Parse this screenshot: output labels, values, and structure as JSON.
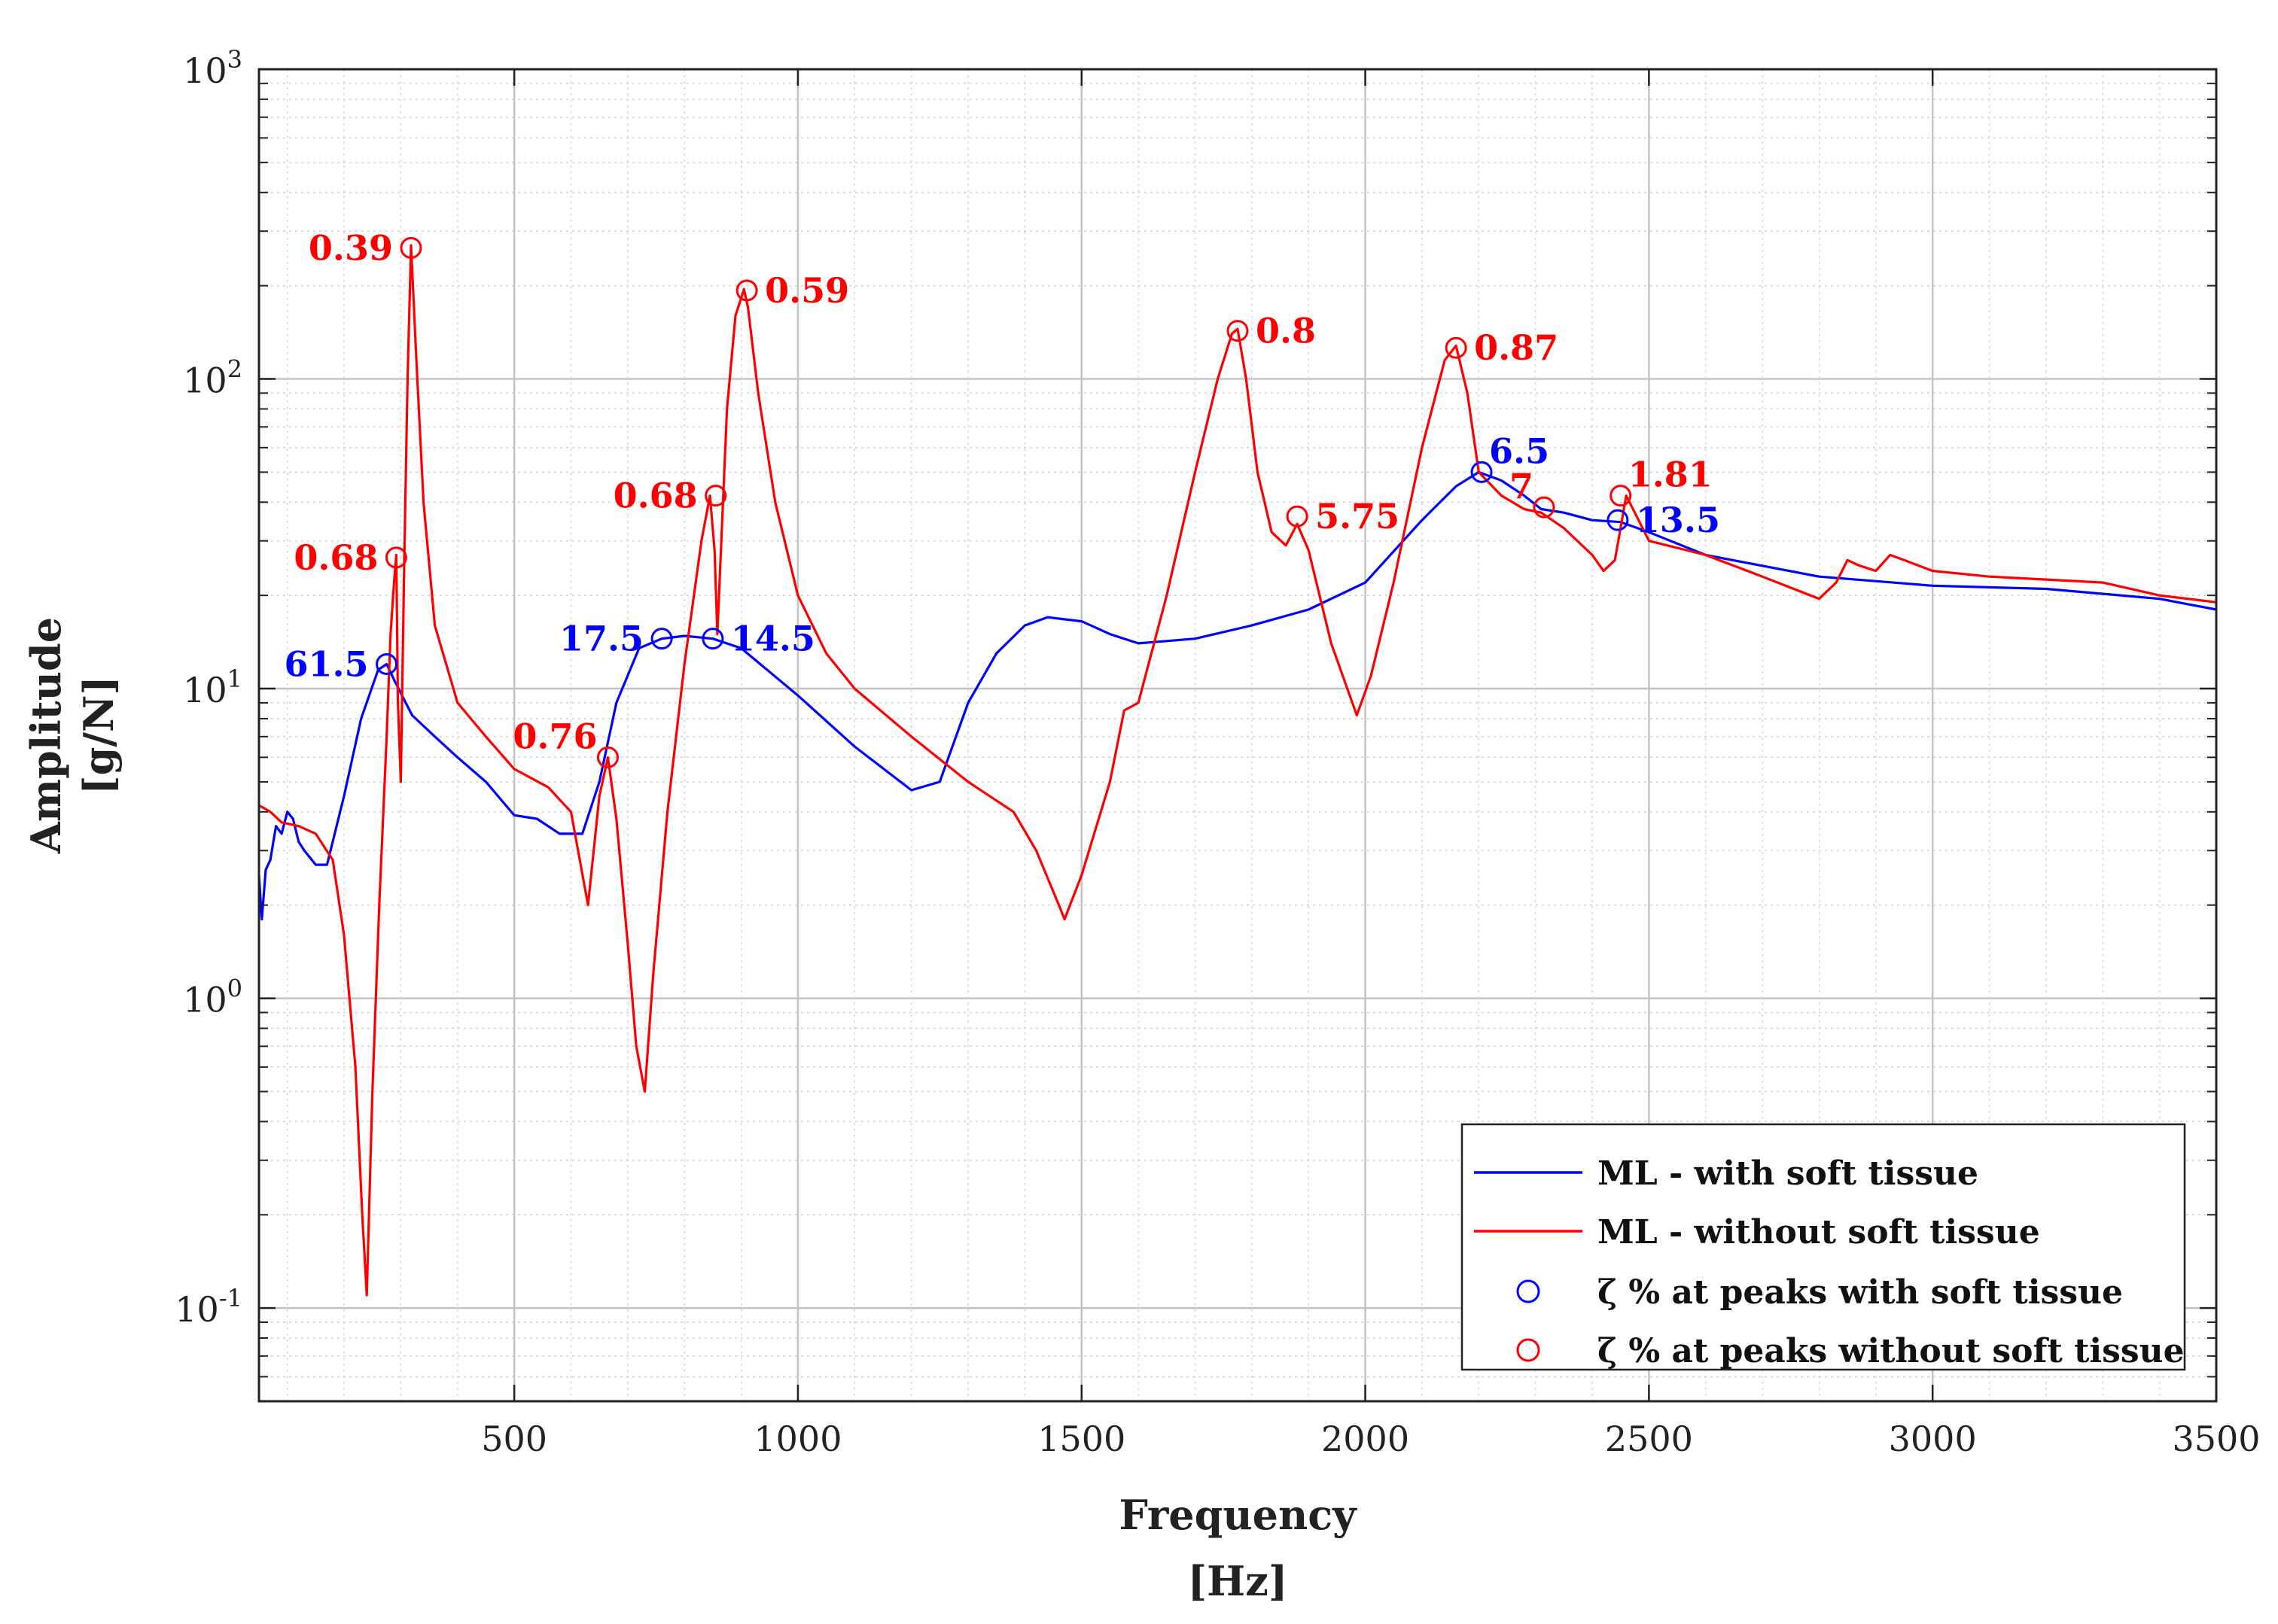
{
  "chart_data": {
    "type": "line",
    "xlabel": "Frequency",
    "xunit": "[Hz]",
    "ylabel": "Amplitude",
    "yunit": "[g/N]",
    "xscale": "linear",
    "yscale": "log",
    "xlim": [
      50,
      3500
    ],
    "ylim": [
      0.05,
      1000
    ],
    "grid": true,
    "minor_grid": true,
    "legend_position": "bottom-right",
    "xticks": [
      500,
      1000,
      1500,
      2000,
      2500,
      3000,
      3500
    ],
    "xtick_labels": [
      "500",
      "1000",
      "1500",
      "2000",
      "2500",
      "3000",
      "3500"
    ],
    "yticks": [
      {
        "value": 0.1,
        "base": "10",
        "exp": "-1"
      },
      {
        "value": 1,
        "base": "10",
        "exp": "0"
      },
      {
        "value": 10,
        "base": "10",
        "exp": "1"
      },
      {
        "value": 100,
        "base": "10",
        "exp": "2"
      },
      {
        "value": 1000,
        "base": "10",
        "exp": "3"
      }
    ],
    "series": [
      {
        "name": "ML - with soft tissue",
        "color": "#0000ff",
        "x": [
          50,
          55,
          62,
          70,
          80,
          90,
          100,
          110,
          120,
          130,
          150,
          170,
          200,
          230,
          260,
          275,
          290,
          320,
          360,
          400,
          450,
          500,
          540,
          580,
          620,
          650,
          680,
          720,
          760,
          800,
          850,
          900,
          1000,
          1100,
          1200,
          1250,
          1300,
          1350,
          1400,
          1440,
          1500,
          1550,
          1600,
          1700,
          1800,
          1900,
          2000,
          2100,
          2160,
          2200,
          2240,
          2280,
          2310,
          2350,
          2400,
          2450,
          2500,
          2600,
          2800,
          3000,
          3200,
          3400,
          3500
        ],
        "values": [
          2.5,
          1.8,
          2.6,
          2.8,
          3.6,
          3.4,
          4.0,
          3.8,
          3.2,
          3.0,
          2.7,
          2.7,
          4.5,
          8.0,
          11.5,
          12.0,
          10.5,
          8.2,
          7.0,
          6.0,
          5.0,
          3.9,
          3.8,
          3.4,
          3.4,
          5.0,
          9.0,
          13.5,
          14.5,
          14.8,
          14.5,
          13.5,
          9.5,
          6.5,
          4.7,
          5.0,
          9.0,
          13.0,
          16.0,
          17.0,
          16.5,
          15.0,
          14.0,
          14.5,
          16.0,
          18.0,
          22.0,
          35.0,
          45.0,
          50.0,
          47.0,
          42.0,
          38.0,
          37.0,
          35.0,
          34.5,
          32.0,
          27.0,
          23.0,
          21.5,
          21.0,
          19.5,
          18.0
        ]
      },
      {
        "name": "ML - without soft tissue",
        "color": "#ff0000",
        "x": [
          50,
          70,
          90,
          120,
          150,
          180,
          200,
          220,
          232,
          240,
          250,
          262,
          275,
          282,
          288,
          292,
          295,
          300,
          306,
          312,
          318,
          328,
          340,
          360,
          400,
          450,
          500,
          560,
          600,
          630,
          650,
          665,
          680,
          700,
          715,
          730,
          745,
          770,
          800,
          830,
          845,
          853,
          858,
          865,
          875,
          890,
          905,
          912,
          930,
          960,
          1000,
          1050,
          1100,
          1200,
          1300,
          1380,
          1420,
          1460,
          1470,
          1500,
          1550,
          1575,
          1600,
          1650,
          1700,
          1740,
          1765,
          1775,
          1790,
          1810,
          1835,
          1860,
          1880,
          1900,
          1940,
          1985,
          2010,
          2050,
          2100,
          2140,
          2160,
          2180,
          2200,
          2240,
          2280,
          2310,
          2350,
          2400,
          2420,
          2440,
          2460,
          2500,
          2600,
          2700,
          2800,
          2830,
          2850,
          2870,
          2900,
          2925,
          2950,
          3000,
          3100,
          3200,
          3300,
          3400,
          3500
        ],
        "values": [
          4.2,
          4.0,
          3.7,
          3.6,
          3.4,
          2.8,
          1.6,
          0.6,
          0.2,
          0.11,
          0.5,
          2.0,
          7.0,
          15.0,
          22.0,
          27.0,
          9.0,
          5.0,
          25.0,
          100.0,
          270.0,
          110.0,
          40.0,
          16.0,
          9.0,
          7.0,
          5.5,
          4.8,
          4.0,
          2.0,
          4.5,
          6.0,
          3.8,
          1.5,
          0.7,
          0.5,
          1.2,
          4.0,
          12.0,
          30.0,
          42.0,
          28.0,
          15.0,
          30.0,
          80.0,
          160.0,
          195.0,
          170.0,
          90.0,
          40.0,
          20.0,
          13.0,
          10.0,
          7.0,
          5.0,
          4.0,
          3.0,
          2.0,
          1.8,
          2.5,
          5.0,
          8.5,
          9.0,
          20.0,
          50.0,
          100.0,
          140.0,
          145.0,
          100.0,
          50.0,
          32.0,
          29.0,
          34.0,
          28.0,
          14.0,
          8.2,
          11.0,
          22.0,
          60.0,
          115.0,
          128.0,
          90.0,
          50.0,
          42.0,
          38.0,
          37.0,
          33.0,
          27.0,
          24.0,
          26.0,
          42.0,
          30.0,
          27.0,
          23.0,
          19.5,
          22.0,
          26.0,
          25.0,
          24.0,
          27.0,
          26.0,
          24.0,
          23.0,
          22.5,
          22.0,
          20.0,
          19.0
        ]
      }
    ],
    "peak_markers": [
      {
        "series": "with",
        "x": 275,
        "y": 12.0,
        "label": "61.5",
        "side": "left",
        "color": "#0000ff"
      },
      {
        "series": "with",
        "x": 760,
        "y": 14.5,
        "label": "17.5",
        "side": "left",
        "color": "#0000ff"
      },
      {
        "series": "with",
        "x": 850,
        "y": 14.5,
        "label": "14.5",
        "side": "right",
        "color": "#0000ff"
      },
      {
        "series": "with",
        "x": 2205,
        "y": 50.0,
        "label": "6.5",
        "side": "upright",
        "color": "#0000ff"
      },
      {
        "series": "with",
        "x": 2445,
        "y": 35.0,
        "label": "13.5",
        "side": "right",
        "color": "#0000ff"
      },
      {
        "series": "without",
        "x": 318,
        "y": 265.0,
        "label": "0.39",
        "side": "left",
        "color": "#ff0000"
      },
      {
        "series": "without",
        "x": 292,
        "y": 26.5,
        "label": "0.68",
        "side": "left",
        "color": "#ff0000"
      },
      {
        "series": "without",
        "x": 665,
        "y": 6.0,
        "label": "0.76",
        "side": "upleft",
        "color": "#ff0000"
      },
      {
        "series": "without",
        "x": 855,
        "y": 42.0,
        "label": "0.68",
        "side": "left",
        "color": "#ff0000"
      },
      {
        "series": "without",
        "x": 910,
        "y": 193.0,
        "label": "0.59",
        "side": "right",
        "color": "#ff0000"
      },
      {
        "series": "without",
        "x": 1775,
        "y": 143.0,
        "label": "0.8",
        "side": "right",
        "color": "#ff0000"
      },
      {
        "series": "without",
        "x": 1880,
        "y": 36.0,
        "label": "5.75",
        "side": "right",
        "color": "#ff0000"
      },
      {
        "series": "without",
        "x": 2160,
        "y": 126.0,
        "label": "0.87",
        "side": "right",
        "color": "#ff0000"
      },
      {
        "series": "without",
        "x": 2315,
        "y": 38.5,
        "label": "7",
        "side": "upleft",
        "color": "#ff0000"
      },
      {
        "series": "without",
        "x": 2450,
        "y": 42.0,
        "label": "1.81",
        "side": "upright",
        "color": "#ff0000"
      }
    ],
    "legend": [
      {
        "label": "ML - with soft tissue",
        "kind": "line",
        "color": "#0000ff"
      },
      {
        "label": "ML - without soft tissue",
        "kind": "line",
        "color": "#ff0000"
      },
      {
        "label": "ζ % at peaks with soft tissue",
        "kind": "circle",
        "color": "#0000ff"
      },
      {
        "label": "ζ % at peaks without soft tissue",
        "kind": "circle",
        "color": "#ff0000"
      }
    ]
  }
}
